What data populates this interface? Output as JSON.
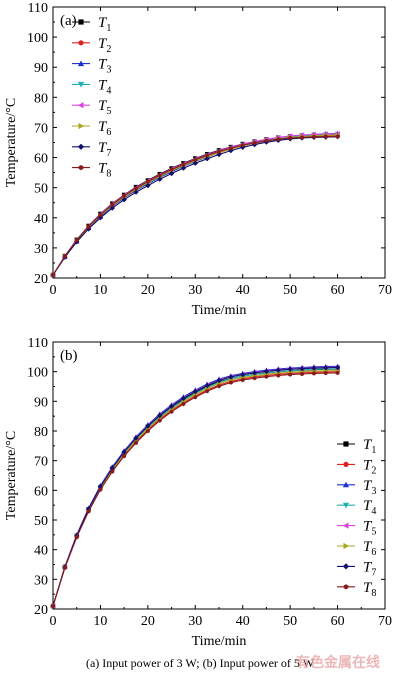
{
  "caption": "(a) Input power of 3 W; (b) Input power of 5 W",
  "watermark": "有色金属在线",
  "colors": [
    "#000000",
    "#e02020",
    "#1f2fd0",
    "#20b0b0",
    "#e040e0",
    "#a8a820",
    "#10106e",
    "#8b1a1a"
  ],
  "markers": [
    "square",
    "circle",
    "triangle-up",
    "triangle-down",
    "triangle-left",
    "triangle-right",
    "diamond",
    "hexagon"
  ],
  "chart_data": [
    {
      "type": "line",
      "panel_label": "(a)",
      "xlabel": "Time/min",
      "ylabel": "Temperature/°C",
      "xlim": [
        0,
        70
      ],
      "ylim": [
        20,
        110
      ],
      "xticks": [
        0,
        10,
        20,
        30,
        40,
        50,
        60,
        70
      ],
      "yticks": [
        20,
        30,
        40,
        50,
        60,
        70,
        80,
        90,
        100,
        110
      ],
      "legend_position": "top-left",
      "x": [
        0,
        2.5,
        5,
        7.5,
        10,
        12.5,
        15,
        17.5,
        20,
        22.5,
        25,
        27.5,
        30,
        32.5,
        35,
        37.5,
        40,
        42.5,
        45,
        47.5,
        50,
        52.5,
        55,
        57.5,
        60
      ],
      "series": [
        {
          "name": "T1",
          "values": [
            21.0,
            27.3,
            32.7,
            37.3,
            41.3,
            44.7,
            47.6,
            50.2,
            52.4,
            54.5,
            56.4,
            58.1,
            59.7,
            61.1,
            62.4,
            63.5,
            64.5,
            65.3,
            66.0,
            66.6,
            67.0,
            67.3,
            67.5,
            67.6,
            67.7
          ]
        },
        {
          "name": "T2",
          "values": [
            21.0,
            27.2,
            32.5,
            37.0,
            40.9,
            44.3,
            47.2,
            49.7,
            51.9,
            54.0,
            55.9,
            57.6,
            59.2,
            60.6,
            61.9,
            63.0,
            64.0,
            64.8,
            65.5,
            66.1,
            66.5,
            66.8,
            67.0,
            67.1,
            67.2
          ]
        },
        {
          "name": "T3",
          "values": [
            21.0,
            27.0,
            32.2,
            36.6,
            40.4,
            43.8,
            46.6,
            49.1,
            51.3,
            53.4,
            55.3,
            57.1,
            58.7,
            60.2,
            61.6,
            62.9,
            64.0,
            65.0,
            65.8,
            66.5,
            67.0,
            67.4,
            67.7,
            67.9,
            68.0
          ]
        },
        {
          "name": "T4",
          "values": [
            21.0,
            27.1,
            32.4,
            36.9,
            40.8,
            44.2,
            47.1,
            49.6,
            51.8,
            53.9,
            55.8,
            57.6,
            59.2,
            60.7,
            62.0,
            63.2,
            64.2,
            65.1,
            65.8,
            66.4,
            66.9,
            67.2,
            67.4,
            67.5,
            67.6
          ]
        },
        {
          "name": "T5",
          "values": [
            21.0,
            27.2,
            32.6,
            37.2,
            41.2,
            44.6,
            47.5,
            50.0,
            52.2,
            54.3,
            56.2,
            57.9,
            59.5,
            60.9,
            62.2,
            63.4,
            64.4,
            65.3,
            66.1,
            66.7,
            67.2,
            67.5,
            67.7,
            67.8,
            67.9
          ]
        },
        {
          "name": "T6",
          "values": [
            21.0,
            27.1,
            32.3,
            36.8,
            40.7,
            44.0,
            46.9,
            49.4,
            51.6,
            53.7,
            55.6,
            57.3,
            58.9,
            60.3,
            61.6,
            62.8,
            63.9,
            64.8,
            65.6,
            66.2,
            66.7,
            67.0,
            67.2,
            67.4,
            67.5
          ]
        },
        {
          "name": "T7",
          "values": [
            21.0,
            26.9,
            32.0,
            36.3,
            40.0,
            43.2,
            46.0,
            48.5,
            50.7,
            52.8,
            54.7,
            56.5,
            58.1,
            59.6,
            61.0,
            62.3,
            63.4,
            64.3,
            65.1,
            65.7,
            66.2,
            66.5,
            66.7,
            66.8,
            66.9
          ]
        },
        {
          "name": "T8",
          "values": [
            21.0,
            27.2,
            32.6,
            37.1,
            41.0,
            44.4,
            47.3,
            49.8,
            52.0,
            54.1,
            56.0,
            57.7,
            59.3,
            60.7,
            62.0,
            63.1,
            64.1,
            64.9,
            65.6,
            66.1,
            66.5,
            66.7,
            66.9,
            67.0,
            67.0
          ]
        }
      ]
    },
    {
      "type": "line",
      "panel_label": "(b)",
      "xlabel": "Time/min",
      "ylabel": "Temperature/°C",
      "xlim": [
        0,
        70
      ],
      "ylim": [
        20,
        110
      ],
      "xticks": [
        0,
        10,
        20,
        30,
        40,
        50,
        60,
        70
      ],
      "yticks": [
        20,
        30,
        40,
        50,
        60,
        70,
        80,
        90,
        100,
        110
      ],
      "legend_position": "right",
      "x": [
        0,
        2.5,
        5,
        7.5,
        10,
        12.5,
        15,
        17.5,
        20,
        22.5,
        25,
        27.5,
        30,
        32.5,
        35,
        37.5,
        40,
        42.5,
        45,
        47.5,
        50,
        52.5,
        55,
        57.5,
        60
      ],
      "series": [
        {
          "name": "T1",
          "values": [
            21.0,
            34.2,
            44.7,
            53.6,
            61.1,
            67.3,
            72.6,
            77.3,
            81.4,
            84.9,
            88.0,
            90.6,
            92.9,
            94.9,
            96.6,
            97.7,
            98.5,
            99.1,
            99.6,
            100.0,
            100.3,
            100.5,
            100.7,
            100.8,
            100.9
          ]
        },
        {
          "name": "T2",
          "values": [
            21.0,
            34.0,
            44.3,
            53.1,
            60.5,
            66.6,
            71.8,
            76.4,
            80.4,
            83.9,
            86.9,
            89.5,
            91.8,
            93.8,
            95.5,
            96.7,
            97.6,
            98.2,
            98.7,
            99.1,
            99.4,
            99.6,
            99.8,
            99.9,
            100.0
          ]
        },
        {
          "name": "T3",
          "values": [
            21.0,
            34.3,
            45.0,
            54.0,
            61.6,
            67.9,
            73.3,
            78.0,
            82.1,
            85.7,
            88.8,
            91.5,
            93.8,
            95.8,
            97.5,
            98.6,
            99.4,
            100.0,
            100.5,
            100.9,
            101.2,
            101.4,
            101.6,
            101.7,
            101.8
          ]
        },
        {
          "name": "T4",
          "values": [
            21.0,
            34.1,
            44.6,
            53.5,
            61.0,
            67.2,
            72.5,
            77.1,
            81.2,
            84.7,
            87.8,
            90.4,
            92.7,
            94.7,
            96.4,
            97.6,
            98.5,
            99.1,
            99.6,
            100.0,
            100.3,
            100.6,
            100.8,
            100.9,
            101.0
          ]
        },
        {
          "name": "T5",
          "values": [
            21.0,
            34.2,
            44.8,
            53.8,
            61.3,
            67.6,
            73.0,
            77.7,
            81.8,
            85.3,
            88.4,
            91.1,
            93.4,
            95.4,
            97.1,
            98.3,
            99.1,
            99.7,
            100.2,
            100.6,
            100.9,
            101.1,
            101.3,
            101.4,
            101.5
          ]
        },
        {
          "name": "T6",
          "values": [
            21.0,
            34.0,
            44.4,
            53.3,
            60.7,
            66.9,
            72.2,
            76.8,
            80.8,
            84.3,
            87.3,
            90.0,
            92.3,
            94.3,
            96.0,
            97.2,
            98.0,
            98.6,
            99.1,
            99.5,
            99.8,
            100.0,
            100.2,
            100.3,
            100.4
          ]
        },
        {
          "name": "T7",
          "values": [
            21.0,
            34.1,
            44.7,
            53.7,
            61.2,
            67.5,
            72.9,
            77.6,
            81.7,
            85.2,
            88.3,
            91.0,
            93.3,
            95.3,
            97.0,
            98.2,
            99.0,
            99.6,
            100.1,
            100.5,
            100.8,
            101.0,
            101.2,
            101.3,
            101.4
          ]
        },
        {
          "name": "T8",
          "values": [
            21.0,
            33.9,
            44.2,
            52.9,
            60.2,
            66.3,
            71.5,
            76.0,
            80.0,
            83.5,
            86.5,
            89.1,
            91.4,
            93.4,
            95.1,
            96.3,
            97.2,
            97.8,
            98.3,
            98.7,
            99.0,
            99.2,
            99.4,
            99.5,
            99.6
          ]
        }
      ]
    }
  ]
}
